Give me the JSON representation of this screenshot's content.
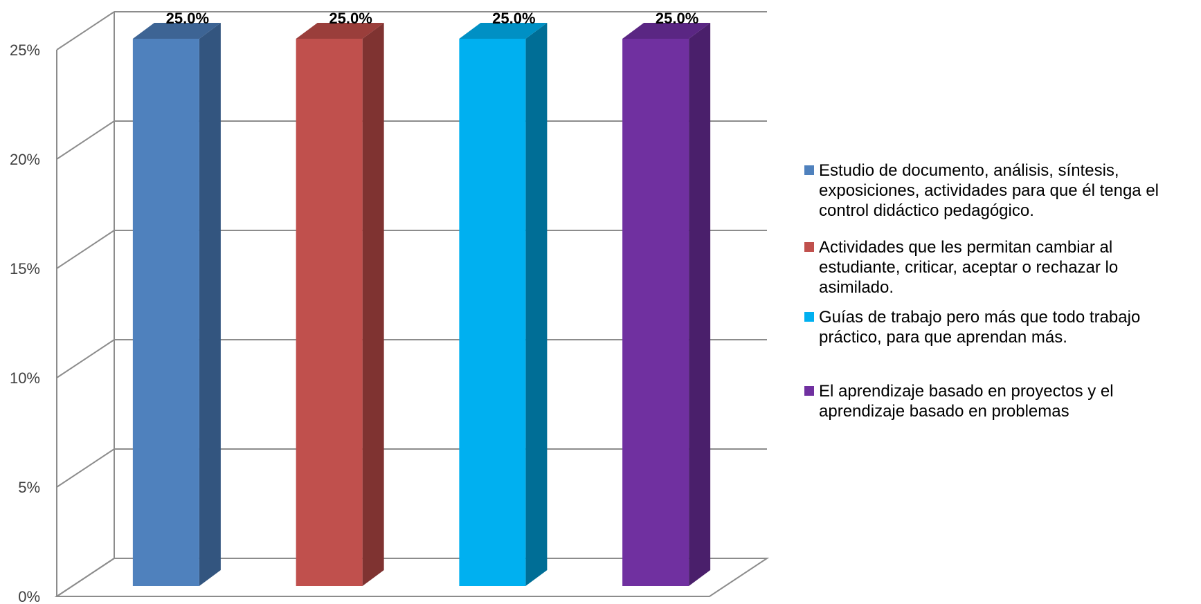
{
  "chart_data": {
    "type": "bar",
    "title": "",
    "xlabel": "",
    "ylabel": "",
    "ylim": [
      0,
      0.25
    ],
    "yticks": [
      "0%",
      "5%",
      "10%",
      "15%",
      "20%",
      "25%"
    ],
    "grid": true,
    "three_d": true,
    "legend_position": "right",
    "categories": [
      "Estudio de documento, análisis, síntesis, exposiciones, actividades para que él tenga el control didáctico pedagógico.",
      "Actividades que les permitan cambiar al estudiante, criticar, aceptar o rechazar lo asimilado.",
      "Guías de trabajo pero más que todo trabajo práctico, para que aprendan más.",
      "El aprendizaje basado en proyectos y el aprendizaje basado en problemas"
    ],
    "values": [
      0.25,
      0.25,
      0.25,
      0.25
    ],
    "data_labels": [
      "25.0%",
      "25.0%",
      "25.0%",
      "25.0%"
    ],
    "colors": [
      "#4F81BD",
      "#C0504D",
      "#00B0F0",
      "#7030A0"
    ],
    "side_colors": [
      "#33557F",
      "#7F3331",
      "#006E96",
      "#4A1F6B"
    ],
    "top_colors": [
      "#3D6494",
      "#9A3E3B",
      "#0090C4",
      "#5A2683"
    ],
    "legend": [
      [
        "Estudio de documento, análisis, síntesis,",
        "exposiciones, actividades para que él tenga el",
        "control didáctico pedagógico."
      ],
      [
        "Actividades que les permitan cambiar al",
        "estudiante, criticar, aceptar o rechazar lo",
        "asimilado."
      ],
      [
        "Guías de trabajo pero más que todo trabajo",
        "práctico, para que aprendan más."
      ],
      [
        "El aprendizaje basado en proyectos y el",
        "aprendizaje basado en problemas"
      ]
    ]
  }
}
